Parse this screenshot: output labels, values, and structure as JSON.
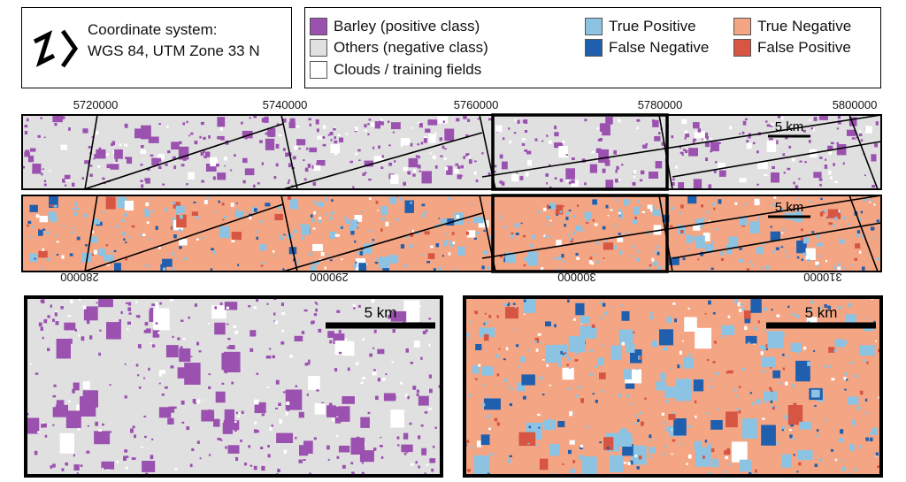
{
  "coordinate": {
    "line1": "Coordinate system:",
    "line2": "WGS 84, UTM Zone 33 N",
    "icon": "north-arrow-icon"
  },
  "legend": [
    {
      "label": "Barley (positive class)",
      "color": "#9b51b0"
    },
    {
      "label": "Others (negative class)",
      "color": "#e0e0e0"
    },
    {
      "label": "Clouds / training fields",
      "color": "#ffffff"
    },
    {
      "label": "True Positive",
      "color": "#8cc3e2"
    },
    {
      "label": "False Negative",
      "color": "#1f5fae"
    },
    {
      "label": "True Negative",
      "color": "#f4a584"
    },
    {
      "label": "False Positive",
      "color": "#d65543"
    }
  ],
  "northing_ticks": [
    "5720000",
    "5740000",
    "5760000",
    "5780000",
    "5800000"
  ],
  "easting_ticks": [
    "280000",
    "290000",
    "300000",
    "310000"
  ],
  "scale_label": "5 km",
  "colors": {
    "others": "#e0e0e0",
    "barley": "#9b51b0",
    "true_negative": "#f4a584",
    "true_positive": "#8cc3e2",
    "false_negative": "#1f5fae",
    "false_positive": "#d65543",
    "clouds": "#ffffff"
  }
}
